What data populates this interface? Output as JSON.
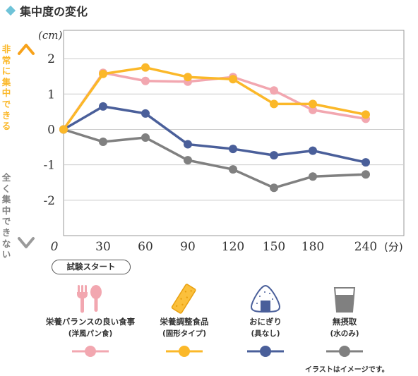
{
  "title": "集中度の変化",
  "colors": {
    "accent": "#6fc3d8",
    "grid": "#cccccc",
    "axis": "#999999"
  },
  "y_axis_top_label": "非常に集中できる",
  "y_axis_bottom_label": "全く集中できない",
  "start_label": "試験スタート",
  "note": "イラストはイメージです。",
  "legend": [
    {
      "name": "栄養バランスの良い食事",
      "sub": "(洋風パン食)",
      "icon": "fork-spoon-icon",
      "color": "#f2a7b0"
    },
    {
      "name": "栄養調整食品",
      "sub": "(固形タイプ)",
      "icon": "nutrition-bar-icon",
      "color": "#fbb829"
    },
    {
      "name": "おにぎり",
      "sub": "(具なし)",
      "icon": "rice-ball-icon",
      "color": "#4a5f9a"
    },
    {
      "name": "無摂取",
      "sub": "(水のみ)",
      "icon": "water-glass-icon",
      "color": "#808080"
    }
  ],
  "chart_data": {
    "type": "line",
    "title": "集中度の変化",
    "xlabel": "(分)",
    "ylabel": "(cm)",
    "x_tick_labels": [
      "0",
      "30",
      "60",
      "90",
      "120",
      "150",
      "180",
      "240"
    ],
    "y_tick_labels": [
      "2",
      "1",
      "0",
      "-1",
      "-2"
    ],
    "ylim": [
      -3,
      2.8
    ],
    "grid": true,
    "legend_position": "bottom",
    "series": [
      {
        "name": "栄養バランスの良い食事 (洋風パン食)",
        "color": "#f2a7b0",
        "values": [
          0,
          1.6,
          1.37,
          1.35,
          1.48,
          1.1,
          0.55,
          0.3
        ]
      },
      {
        "name": "栄養調整食品 (固形タイプ)",
        "color": "#fbb829",
        "values": [
          0,
          1.57,
          1.75,
          1.48,
          1.42,
          0.72,
          0.72,
          0.42
        ]
      },
      {
        "name": "おにぎり (具なし)",
        "color": "#4a5f9a",
        "values": [
          0,
          0.65,
          0.45,
          -0.42,
          -0.55,
          -0.73,
          -0.6,
          -0.93
        ]
      },
      {
        "name": "無摂取 (水のみ)",
        "color": "#808080",
        "values": [
          0,
          -0.35,
          -0.23,
          -0.87,
          -1.13,
          -1.65,
          -1.33,
          -1.27
        ]
      }
    ]
  }
}
